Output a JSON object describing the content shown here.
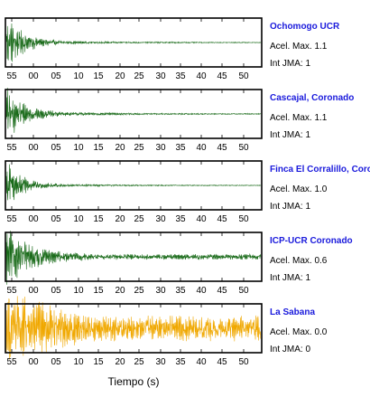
{
  "chart_data": {
    "type": "line",
    "x_axis": {
      "label": "Tiempo (s)",
      "tick_labels": [
        "55",
        "00",
        "05",
        "10",
        "15",
        "20",
        "25",
        "30",
        "35",
        "40",
        "45",
        "50"
      ]
    },
    "colors": {
      "significant": "#1a6b1a",
      "insignificant": "#f0a800",
      "station_name": "#1a1adc",
      "frame": "#000000"
    },
    "panels": [
      {
        "station": "Ochomogo UCR",
        "acel_label": "Acel. Max.",
        "acel_value": "1.1",
        "jma_label": "Int JMA:",
        "jma_value": "1",
        "waveform": {
          "peak": 1.0,
          "onset": 0.0,
          "decay": 2.6,
          "noise": 0.06,
          "tail": 0.015,
          "color": "#1a6b1a"
        }
      },
      {
        "station": "Cascajal, Coronado",
        "acel_label": "Acel. Max.",
        "acel_value": "1.1",
        "jma_label": "Int JMA:",
        "jma_value": "1",
        "waveform": {
          "peak": 0.95,
          "onset": 0.0,
          "decay": 2.4,
          "noise": 0.07,
          "tail": 0.02,
          "color": "#1a6b1a"
        }
      },
      {
        "station": "Finca El Corralillo, Coronado",
        "acel_label": "Acel. Max.",
        "acel_value": "1.0",
        "jma_label": "Int JMA:",
        "jma_value": "1",
        "waveform": {
          "peak": 0.95,
          "onset": 0.0,
          "decay": 3.0,
          "noise": 0.05,
          "tail": 0.01,
          "color": "#1a6b1a"
        }
      },
      {
        "station": "ICP-UCR Coronado",
        "acel_label": "Acel. Max.",
        "acel_value": "0.6",
        "jma_label": "Int JMA:",
        "jma_value": "1",
        "waveform": {
          "peak": 0.9,
          "onset": 0.0,
          "decay": 1.6,
          "noise": 0.13,
          "tail": 0.1,
          "color": "#1a6b1a"
        }
      },
      {
        "station": "La Sabana",
        "acel_label": "Acel. Max.",
        "acel_value": "0.0",
        "jma_label": "Int JMA:",
        "jma_value": "0",
        "waveform": {
          "peak": 0.9,
          "onset": 0.0,
          "decay": 0.6,
          "noise": 0.45,
          "tail": 0.45,
          "color": "#f0a800"
        }
      }
    ]
  }
}
